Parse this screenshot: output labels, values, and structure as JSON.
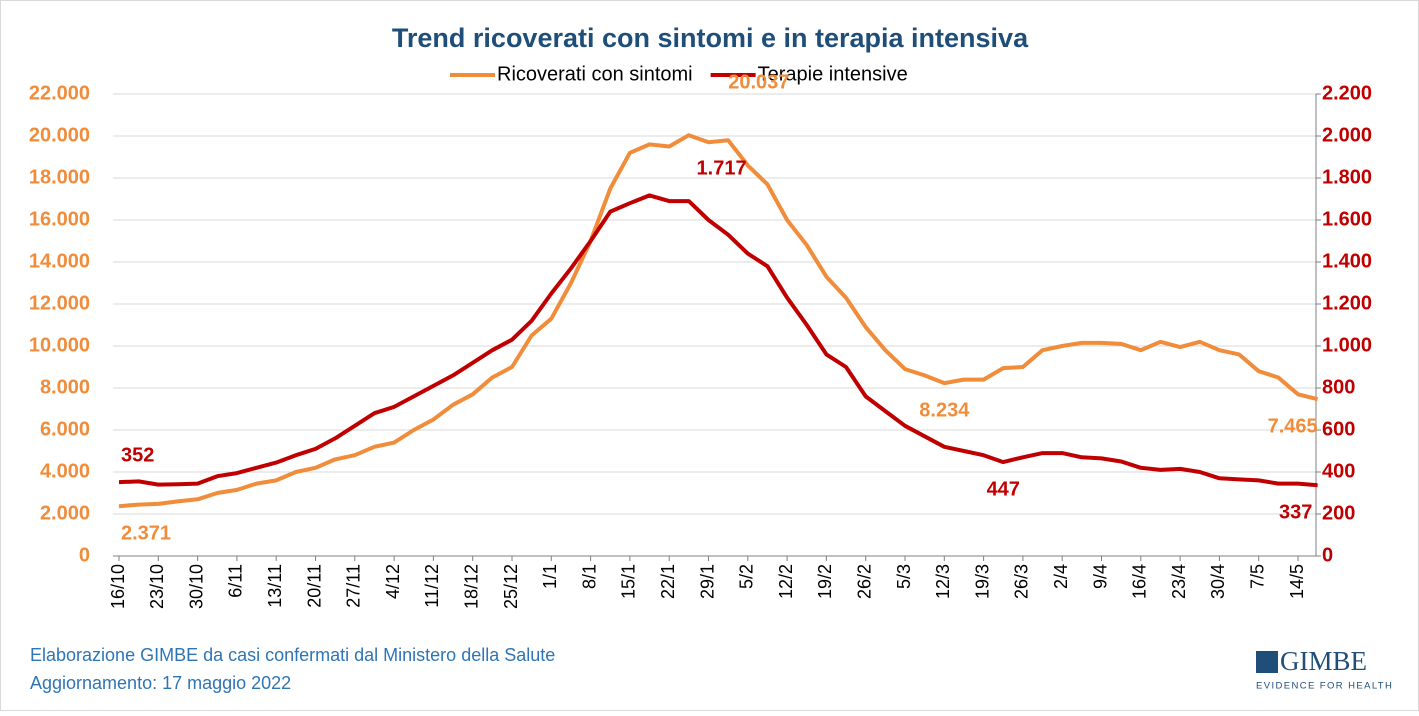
{
  "chart_data": {
    "type": "line",
    "title": "Trend ricoverati con sintomi e in terapia intensiva",
    "categories": [
      "16/10",
      null,
      "23/10",
      null,
      "30/10",
      null,
      "6/11",
      null,
      "13/11",
      null,
      "20/11",
      null,
      "27/11",
      null,
      "4/12",
      null,
      "11/12",
      null,
      "18/12",
      null,
      "25/12",
      null,
      "1/1",
      null,
      "8/1",
      null,
      "15/1",
      null,
      "22/1",
      null,
      "29/1",
      null,
      "5/2",
      null,
      "12/2",
      null,
      "19/2",
      null,
      "26/2",
      null,
      "5/3",
      null,
      "12/3",
      null,
      "19/3",
      null,
      "26/3",
      null,
      "2/4",
      null,
      "9/4",
      null,
      "16/4",
      null,
      "23/4",
      null,
      "30/4",
      null,
      "7/5",
      null,
      "14/5",
      null
    ],
    "series": [
      {
        "name": "Ricoverati con sintomi",
        "color": "#f08c3a",
        "axis": "y",
        "values": [
          2371,
          2450,
          2480,
          2600,
          2700,
          3000,
          3150,
          3450,
          3600,
          4000,
          4200,
          4600,
          4800,
          5200,
          5400,
          6000,
          6500,
          7200,
          7700,
          8500,
          9000,
          10500,
          11300,
          13000,
          15000,
          17500,
          19200,
          19600,
          19500,
          20037,
          19700,
          19800,
          18600,
          17700,
          16000,
          14800,
          13300,
          12300,
          10900,
          9800,
          8900,
          8600,
          8234,
          8400,
          8400,
          8950,
          9000,
          9800,
          10000,
          10150,
          10150,
          10100,
          9800,
          10200,
          9950,
          10200,
          9800,
          9600,
          8800,
          8500,
          7700,
          7465
        ],
        "value_labels": [
          "2.371",
          null,
          null,
          null,
          null,
          null,
          null,
          null,
          null,
          null,
          null,
          null,
          null,
          null,
          null,
          null,
          null,
          null,
          null,
          null,
          null,
          null,
          null,
          null,
          null,
          null,
          null,
          null,
          null,
          "20.037",
          null,
          null,
          null,
          null,
          null,
          null,
          null,
          null,
          null,
          null,
          null,
          null,
          "8.234",
          null,
          null,
          null,
          null,
          null,
          null,
          null,
          null,
          null,
          null,
          null,
          null,
          null,
          null,
          null,
          null,
          null,
          null,
          "7.465"
        ]
      },
      {
        "name": "Terapie intensive",
        "color": "#c00000",
        "axis": "y2",
        "values": [
          352,
          355,
          340,
          342,
          345,
          380,
          395,
          420,
          445,
          480,
          510,
          560,
          620,
          680,
          710,
          760,
          810,
          860,
          920,
          980,
          1030,
          1120,
          1250,
          1370,
          1500,
          1640,
          1680,
          1717,
          1690,
          1690,
          1600,
          1530,
          1440,
          1380,
          1230,
          1100,
          960,
          900,
          760,
          690,
          620,
          570,
          520,
          500,
          480,
          447,
          470,
          490,
          490,
          470,
          465,
          450,
          420,
          410,
          415,
          400,
          370,
          365,
          360,
          345,
          345,
          337
        ],
        "value_labels": [
          "352",
          null,
          null,
          null,
          null,
          null,
          null,
          null,
          null,
          null,
          null,
          null,
          null,
          null,
          null,
          null,
          null,
          null,
          null,
          null,
          null,
          null,
          null,
          null,
          null,
          null,
          null,
          "1.717",
          null,
          null,
          null,
          null,
          null,
          null,
          null,
          null,
          null,
          null,
          null,
          null,
          null,
          null,
          null,
          null,
          null,
          "447",
          null,
          null,
          null,
          null,
          null,
          null,
          null,
          null,
          null,
          null,
          null,
          null,
          null,
          null,
          null,
          "337"
        ]
      }
    ],
    "ylim": [
      0,
      22000
    ],
    "yticks": [
      0,
      {
        "value": 2000,
        "label": "2.000"
      },
      {
        "value": 4000,
        "label": "4.000"
      },
      {
        "value": 6000,
        "label": "6.000"
      },
      {
        "value": 8000,
        "label": "8.000"
      },
      {
        "value": 10000,
        "label": "10.000"
      },
      {
        "value": 12000,
        "label": "12.000"
      },
      {
        "value": 14000,
        "label": "14.000"
      },
      {
        "value": 16000,
        "label": "16.000"
      },
      {
        "value": 18000,
        "label": "18.000"
      },
      {
        "value": 20000,
        "label": "20.000"
      },
      {
        "value": 22000,
        "label": "22.000"
      }
    ],
    "y2lim": [
      0,
      2200
    ],
    "y2ticks": [
      0,
      200,
      400,
      600,
      800,
      {
        "value": 1000,
        "label": "1.000"
      },
      {
        "value": 1200,
        "label": "1.200"
      },
      {
        "value": 1400,
        "label": "1.400"
      },
      {
        "value": 1600,
        "label": "1.600"
      },
      {
        "value": 1800,
        "label": "1.800"
      },
      {
        "value": 2000,
        "label": "2.000"
      },
      {
        "value": 2200,
        "label": "2.200"
      }
    ],
    "grid": true,
    "legend": "top"
  },
  "footer": {
    "source": "Elaborazione GIMBE da casi confermati dal Ministero della Salute",
    "update": "Aggiornamento: 17 maggio 2022"
  },
  "logo": {
    "name": "GIMBE",
    "tagline": "EVIDENCE FOR HEALTH"
  }
}
